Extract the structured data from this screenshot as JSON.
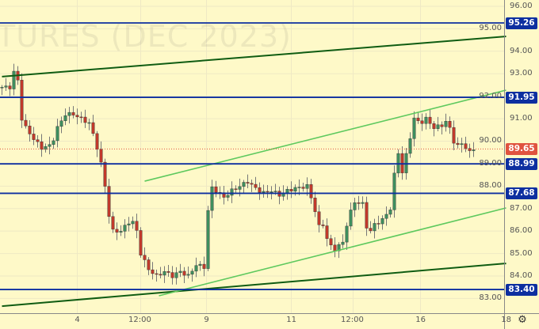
{
  "watermark": "TURES (DEC 2023)",
  "colors": {
    "background": "#fef9c8",
    "grid": "#efe9c4",
    "level": "#0d2fa0",
    "trend_dark": "#0f5c12",
    "trend_light": "#5ec95e",
    "up": "#3e8e5e",
    "down": "#c0392b",
    "last_price": "#e0533f"
  },
  "chart_data": {
    "type": "candlestick",
    "ylim": [
      82.7,
      96.3
    ],
    "y_ticks": [
      "83.00",
      "84.00",
      "85.00",
      "86.00",
      "87.00",
      "88.00",
      "89.00",
      "90.00",
      "91.00",
      "92.00",
      "93.00",
      "94.00",
      "95.00",
      "96.00"
    ],
    "x_ticks": [
      {
        "label": "4",
        "bar": 19
      },
      {
        "label": "12:00",
        "bar": 35
      },
      {
        "label": "9",
        "bar": 51.6
      },
      {
        "label": "11",
        "bar": 73
      },
      {
        "label": "12:00",
        "bar": 88.6
      },
      {
        "label": "16",
        "bar": 105.6
      },
      {
        "label": "18",
        "bar": 127.2
      }
    ],
    "price_path": [
      [
        0,
        92.4
      ],
      [
        2,
        92.4
      ],
      [
        3.2,
        93.2
      ],
      [
        4,
        92.7
      ],
      [
        5,
        91.0
      ],
      [
        6,
        90.6
      ],
      [
        8,
        90.1
      ],
      [
        10,
        89.7
      ],
      [
        12,
        89.8
      ],
      [
        13,
        90.1
      ],
      [
        14,
        90.6
      ],
      [
        16,
        91.2
      ],
      [
        18,
        91.2
      ],
      [
        20,
        91.0
      ],
      [
        22,
        90.8
      ],
      [
        23.6,
        90.0
      ],
      [
        25,
        89.0
      ],
      [
        26,
        88.0
      ],
      [
        27,
        86.7
      ],
      [
        28,
        86.0
      ],
      [
        30,
        86.0
      ],
      [
        32,
        86.4
      ],
      [
        33.6,
        86.4
      ],
      [
        35,
        85.0
      ],
      [
        37,
        84.3
      ],
      [
        39,
        84.0
      ],
      [
        41,
        84.2
      ],
      [
        43,
        84.0
      ],
      [
        45,
        84.2
      ],
      [
        47,
        84.0
      ],
      [
        49,
        84.5
      ],
      [
        51,
        84.4
      ],
      [
        51.6,
        85.8
      ],
      [
        52.4,
        88.0
      ],
      [
        54,
        87.8
      ],
      [
        56,
        87.5
      ],
      [
        58,
        87.8
      ],
      [
        60,
        88.0
      ],
      [
        62,
        88.2
      ],
      [
        64,
        87.9
      ],
      [
        66,
        87.7
      ],
      [
        68,
        87.8
      ],
      [
        70,
        87.6
      ],
      [
        72,
        87.8
      ],
      [
        74,
        87.9
      ],
      [
        77,
        88.0
      ],
      [
        78,
        87.5
      ],
      [
        79,
        86.9
      ],
      [
        80,
        86.2
      ],
      [
        81,
        86.3
      ],
      [
        82.4,
        85.4
      ],
      [
        84,
        85.2
      ],
      [
        86,
        85.5
      ],
      [
        87.4,
        86.6
      ],
      [
        89,
        87.3
      ],
      [
        91,
        87.2
      ],
      [
        92.4,
        85.8
      ],
      [
        94,
        86.3
      ],
      [
        96,
        86.5
      ],
      [
        98,
        87.0
      ],
      [
        99,
        88.5
      ],
      [
        100,
        89.5
      ],
      [
        101,
        88.6
      ],
      [
        102.4,
        89.7
      ],
      [
        104,
        91.0
      ],
      [
        105.6,
        90.8
      ],
      [
        107,
        91.0
      ],
      [
        109,
        90.6
      ],
      [
        111,
        90.7
      ],
      [
        112.6,
        91.0
      ],
      [
        113.4,
        90.1
      ],
      [
        115,
        89.8
      ],
      [
        116.4,
        89.9
      ],
      [
        118,
        89.5
      ],
      [
        119,
        89.65
      ]
    ],
    "horizontal_levels": [
      {
        "price": 95.26,
        "label": "95.26"
      },
      {
        "price": 91.95,
        "label": "91.95"
      },
      {
        "price": 88.99,
        "label": "88.99"
      },
      {
        "price": 87.68,
        "label": "87.68"
      },
      {
        "price": 83.4,
        "label": "83.40"
      }
    ],
    "trendlines": [
      {
        "style": "dark",
        "from": [
          0,
          92.87
        ],
        "to": [
          127.2,
          94.66
        ]
      },
      {
        "style": "dark",
        "from": [
          0,
          82.66
        ],
        "to": [
          127.2,
          84.56
        ]
      },
      {
        "style": "light",
        "from": [
          36,
          88.22
        ],
        "to": [
          127.2,
          92.27
        ]
      },
      {
        "style": "light",
        "from": [
          39.6,
          83.12
        ],
        "to": [
          127.2,
          87.03
        ]
      }
    ],
    "last_price": {
      "price": 89.65,
      "label": "89.65"
    }
  }
}
